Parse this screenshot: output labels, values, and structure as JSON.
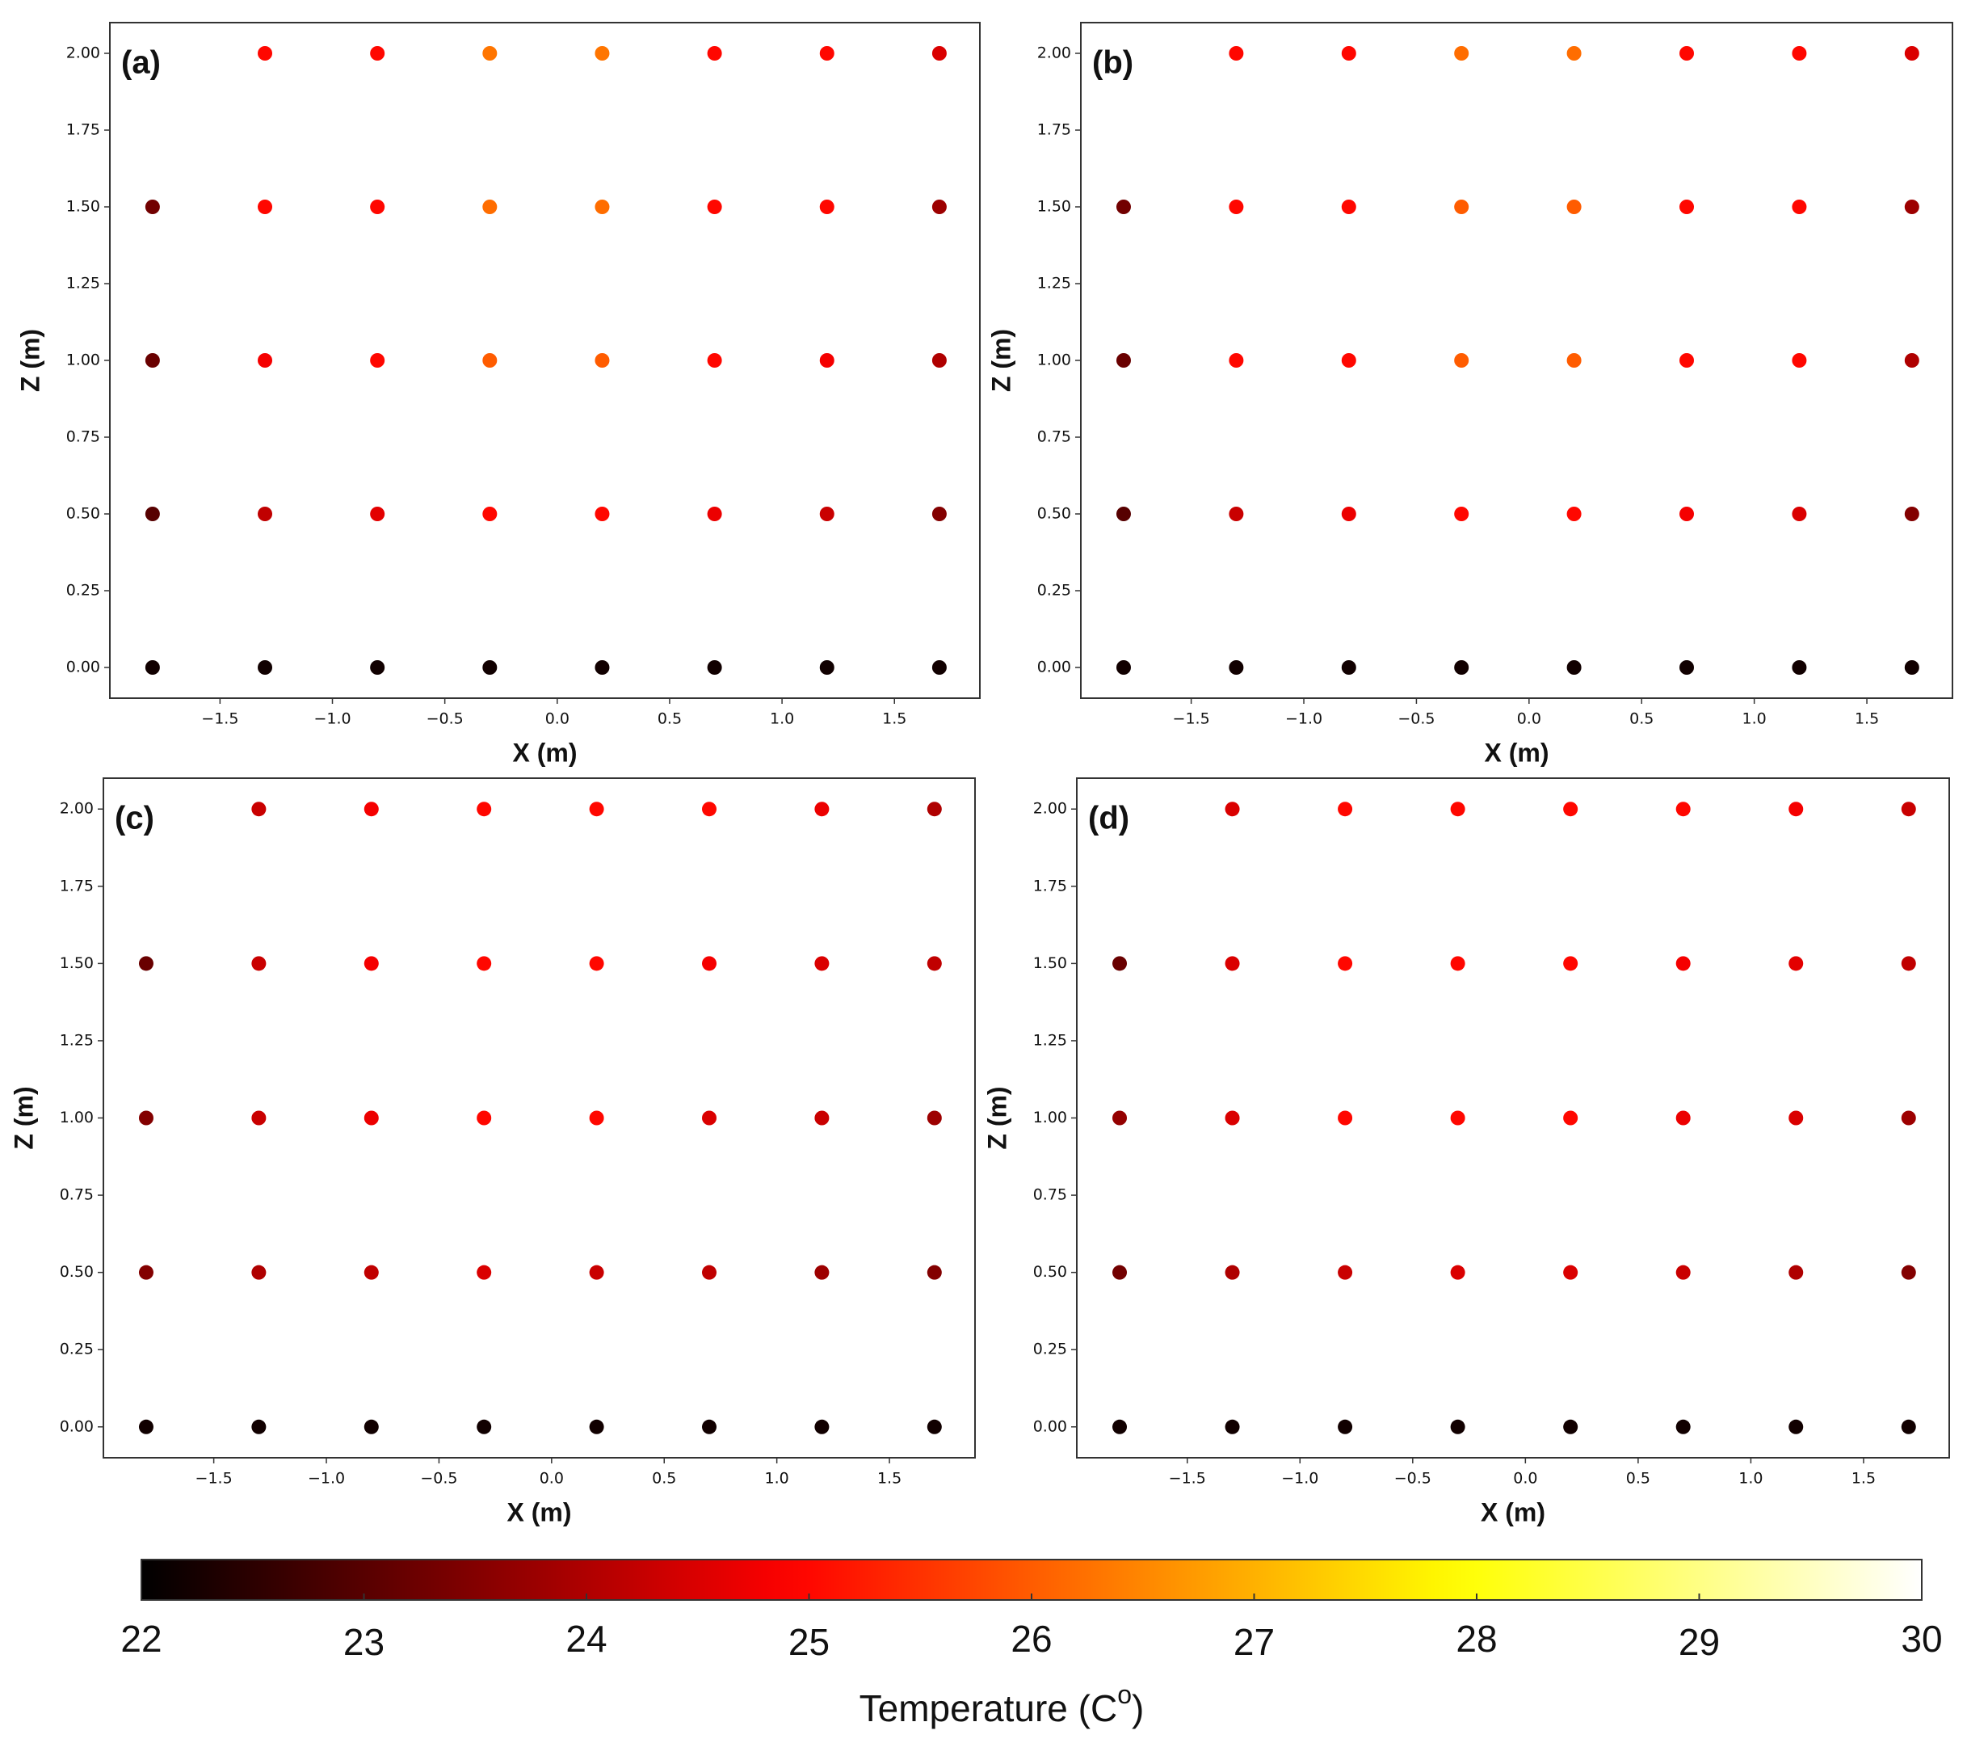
{
  "chart_data": [
    {
      "type": "scatter",
      "annotation": "(a)",
      "xlabel": "X (m)",
      "ylabel": "Z (m)",
      "x": [
        -1.3,
        -0.8,
        -0.3,
        0.2,
        0.7,
        1.2,
        1.7,
        -1.8,
        -1.3,
        -0.8,
        -0.3,
        0.2,
        0.7,
        1.2,
        1.7,
        -1.8,
        -1.3,
        -0.8,
        -0.3,
        0.2,
        0.7,
        1.2,
        1.7,
        -1.8,
        -1.3,
        -0.8,
        -0.3,
        0.2,
        0.7,
        1.2,
        1.7,
        -1.8,
        -1.3,
        -0.8,
        -0.3,
        0.2,
        0.7,
        1.2,
        1.7
      ],
      "y": [
        2,
        2,
        2,
        2,
        2,
        2,
        2,
        1.5,
        1.5,
        1.5,
        1.5,
        1.5,
        1.5,
        1.5,
        1.5,
        1,
        1,
        1,
        1,
        1,
        1,
        1,
        1,
        0.5,
        0.5,
        0.5,
        0.5,
        0.5,
        0.5,
        0.5,
        0.5,
        0,
        0,
        0,
        0,
        0,
        0,
        0,
        0
      ],
      "values": [
        25,
        25,
        26.3,
        26.3,
        25,
        25,
        24.5,
        23.3,
        25,
        25,
        26.2,
        26.2,
        25,
        25,
        23.8,
        23.2,
        24.8,
        25,
        26,
        26,
        25,
        24.8,
        24,
        23,
        24.2,
        24.6,
        25,
        25,
        24.7,
        24.3,
        23.5,
        22.2,
        22.2,
        22.2,
        22.2,
        22.2,
        22.2,
        22.2,
        22.2
      ],
      "colormap": "hot",
      "clim": [
        22,
        30
      ],
      "xlim": [
        -1.99,
        1.88
      ],
      "ylim": [
        -0.1,
        2.1
      ],
      "xticks": [
        {
          "value": -1.5,
          "label": "−1.5"
        },
        {
          "value": -1,
          "label": "−1.0"
        },
        {
          "value": -0.5,
          "label": "−0.5"
        },
        {
          "value": 0,
          "label": "0.0"
        },
        0.5,
        {
          "value": 1,
          "label": "1.0"
        },
        1.5
      ],
      "yticks": [
        {
          "value": 0,
          "label": "0.00"
        },
        {
          "value": 0.25,
          "label": "0.25"
        },
        {
          "value": 0.5,
          "label": "0.50"
        },
        {
          "value": 0.75,
          "label": "0.75"
        },
        {
          "value": 1,
          "label": "1.00"
        },
        {
          "value": 1.25,
          "label": "1.25"
        },
        {
          "value": 1.5,
          "label": "1.50"
        },
        {
          "value": 1.75,
          "label": "1.75"
        },
        {
          "value": 2,
          "label": "2.00"
        }
      ]
    },
    {
      "type": "scatter",
      "annotation": "(b)",
      "xlabel": "X (m)",
      "ylabel": "Z (m)",
      "x": [
        -1.3,
        -0.8,
        -0.3,
        0.2,
        0.7,
        1.2,
        1.7,
        -1.8,
        -1.3,
        -0.8,
        -0.3,
        0.2,
        0.7,
        1.2,
        1.7,
        -1.8,
        -1.3,
        -0.8,
        -0.3,
        0.2,
        0.7,
        1.2,
        1.7,
        -1.8,
        -1.3,
        -0.8,
        -0.3,
        0.2,
        0.7,
        1.2,
        1.7,
        -1.8,
        -1.3,
        -0.8,
        -0.3,
        0.2,
        0.7,
        1.2,
        1.7
      ],
      "y": [
        2,
        2,
        2,
        2,
        2,
        2,
        2,
        1.5,
        1.5,
        1.5,
        1.5,
        1.5,
        1.5,
        1.5,
        1.5,
        1,
        1,
        1,
        1,
        1,
        1,
        1,
        1,
        0.5,
        0.5,
        0.5,
        0.5,
        0.5,
        0.5,
        0.5,
        0.5,
        0,
        0,
        0,
        0,
        0,
        0,
        0,
        0
      ],
      "values": [
        25,
        25,
        26.2,
        26.2,
        25,
        25,
        24.5,
        23.3,
        25,
        25,
        26,
        26,
        25,
        25,
        23.8,
        23.2,
        25,
        25,
        26,
        26,
        25,
        25,
        24,
        23,
        24.3,
        24.7,
        25,
        25,
        24.8,
        24.5,
        23.5,
        22.2,
        22.2,
        22.2,
        22.2,
        22.2,
        22.2,
        22.2,
        22.2
      ],
      "colormap": "hot",
      "clim": [
        22,
        30
      ],
      "xlim": [
        -1.99,
        1.88
      ],
      "ylim": [
        -0.1,
        2.1
      ],
      "xticks": [
        {
          "value": -1.5,
          "label": "−1.5"
        },
        {
          "value": -1,
          "label": "−1.0"
        },
        {
          "value": -0.5,
          "label": "−0.5"
        },
        {
          "value": 0,
          "label": "0.0"
        },
        0.5,
        {
          "value": 1,
          "label": "1.0"
        },
        1.5
      ],
      "yticks": [
        {
          "value": 0,
          "label": "0.00"
        },
        {
          "value": 0.25,
          "label": "0.25"
        },
        {
          "value": 0.5,
          "label": "0.50"
        },
        {
          "value": 0.75,
          "label": "0.75"
        },
        {
          "value": 1,
          "label": "1.00"
        },
        {
          "value": 1.25,
          "label": "1.25"
        },
        {
          "value": 1.5,
          "label": "1.50"
        },
        {
          "value": 1.75,
          "label": "1.75"
        },
        {
          "value": 2,
          "label": "2.00"
        }
      ]
    },
    {
      "type": "scatter",
      "annotation": "(c)",
      "xlabel": "X (m)",
      "ylabel": "Z (m)",
      "x": [
        -1.3,
        -0.8,
        -0.3,
        0.2,
        0.7,
        1.2,
        1.7,
        -1.8,
        -1.3,
        -0.8,
        -0.3,
        0.2,
        0.7,
        1.2,
        1.7,
        -1.8,
        -1.3,
        -0.8,
        -0.3,
        0.2,
        0.7,
        1.2,
        1.7,
        -1.8,
        -1.3,
        -0.8,
        -0.3,
        0.2,
        0.7,
        1.2,
        1.7,
        -1.8,
        -1.3,
        -0.8,
        -0.3,
        0.2,
        0.7,
        1.2,
        1.7
      ],
      "y": [
        2,
        2,
        2,
        2,
        2,
        2,
        2,
        1.5,
        1.5,
        1.5,
        1.5,
        1.5,
        1.5,
        1.5,
        1.5,
        1,
        1,
        1,
        1,
        1,
        1,
        1,
        1,
        0.5,
        0.5,
        0.5,
        0.5,
        0.5,
        0.5,
        0.5,
        0.5,
        0,
        0,
        0,
        0,
        0,
        0,
        0,
        0
      ],
      "values": [
        24.3,
        24.8,
        25,
        25,
        25,
        24.7,
        24,
        23.2,
        24.3,
        24.8,
        25,
        25,
        24.8,
        24.5,
        24.2,
        23.5,
        24.3,
        24.7,
        25,
        25,
        24.5,
        24.3,
        23.8,
        23.5,
        24,
        24.2,
        24.5,
        24.3,
        24.2,
        23.8,
        23.5,
        22.2,
        22.2,
        22.2,
        22.2,
        22.2,
        22.2,
        22.2,
        22.2
      ],
      "colormap": "hot",
      "clim": [
        22,
        30
      ],
      "xlim": [
        -1.99,
        1.88
      ],
      "ylim": [
        -0.1,
        2.1
      ],
      "xticks": [
        {
          "value": -1.5,
          "label": "−1.5"
        },
        {
          "value": -1,
          "label": "−1.0"
        },
        {
          "value": -0.5,
          "label": "−0.5"
        },
        {
          "value": 0,
          "label": "0.0"
        },
        0.5,
        {
          "value": 1,
          "label": "1.0"
        },
        1.5
      ],
      "yticks": [
        {
          "value": 0,
          "label": "0.00"
        },
        {
          "value": 0.25,
          "label": "0.25"
        },
        {
          "value": 0.5,
          "label": "0.50"
        },
        {
          "value": 0.75,
          "label": "0.75"
        },
        {
          "value": 1,
          "label": "1.00"
        },
        {
          "value": 1.25,
          "label": "1.25"
        },
        {
          "value": 1.5,
          "label": "1.50"
        },
        {
          "value": 1.75,
          "label": "1.75"
        },
        {
          "value": 2,
          "label": "2.00"
        }
      ]
    },
    {
      "type": "scatter",
      "annotation": "(d)",
      "xlabel": "X (m)",
      "ylabel": "Z (m)",
      "x": [
        -1.3,
        -0.8,
        -0.3,
        0.2,
        0.7,
        1.2,
        1.7,
        -1.8,
        -1.3,
        -0.8,
        -0.3,
        0.2,
        0.7,
        1.2,
        1.7,
        -1.8,
        -1.3,
        -0.8,
        -0.3,
        0.2,
        0.7,
        1.2,
        1.7,
        -1.8,
        -1.3,
        -0.8,
        -0.3,
        0.2,
        0.7,
        1.2,
        1.7,
        -1.8,
        -1.3,
        -0.8,
        -0.3,
        0.2,
        0.7,
        1.2,
        1.7
      ],
      "y": [
        2,
        2,
        2,
        2,
        2,
        2,
        2,
        1.5,
        1.5,
        1.5,
        1.5,
        1.5,
        1.5,
        1.5,
        1.5,
        1,
        1,
        1,
        1,
        1,
        1,
        1,
        1,
        0.5,
        0.5,
        0.5,
        0.5,
        0.5,
        0.5,
        0.5,
        0.5,
        0,
        0,
        0,
        0,
        0,
        0,
        0,
        0
      ],
      "values": [
        24.5,
        25,
        25,
        25,
        25,
        24.8,
        24.3,
        23.2,
        24.5,
        25,
        25,
        25,
        24.8,
        24.6,
        24.2,
        23.7,
        24.5,
        25,
        25,
        25,
        24.7,
        24.5,
        23.8,
        23.3,
        24,
        24.3,
        24.5,
        24.5,
        24.3,
        24,
        23.5,
        22.2,
        22.2,
        22.2,
        22.2,
        22.2,
        22.2,
        22.2,
        22.2
      ],
      "colormap": "hot",
      "clim": [
        22,
        30
      ],
      "xlim": [
        -1.99,
        1.88
      ],
      "ylim": [
        -0.1,
        2.1
      ],
      "xticks": [
        {
          "value": -1.5,
          "label": "−1.5"
        },
        {
          "value": -1,
          "label": "−1.0"
        },
        {
          "value": -0.5,
          "label": "−0.5"
        },
        {
          "value": 0,
          "label": "0.0"
        },
        0.5,
        {
          "value": 1,
          "label": "1.0"
        },
        1.5
      ],
      "yticks": [
        {
          "value": 0,
          "label": "0.00"
        },
        {
          "value": 0.25,
          "label": "0.25"
        },
        {
          "value": 0.5,
          "label": "0.50"
        },
        {
          "value": 0.75,
          "label": "0.75"
        },
        {
          "value": 1,
          "label": "1.00"
        },
        {
          "value": 1.25,
          "label": "1.25"
        },
        {
          "value": 1.5,
          "label": "1.50"
        },
        {
          "value": 1.75,
          "label": "1.75"
        },
        {
          "value": 2,
          "label": "2.00"
        }
      ]
    }
  ],
  "colorbar": {
    "colormap": "hot",
    "lim": [
      22,
      30
    ],
    "ticks": [
      22,
      23,
      24,
      25,
      26,
      27,
      28,
      29,
      30
    ],
    "label": "Temperature (C",
    "label_sup": "o",
    "label_end": ")"
  }
}
